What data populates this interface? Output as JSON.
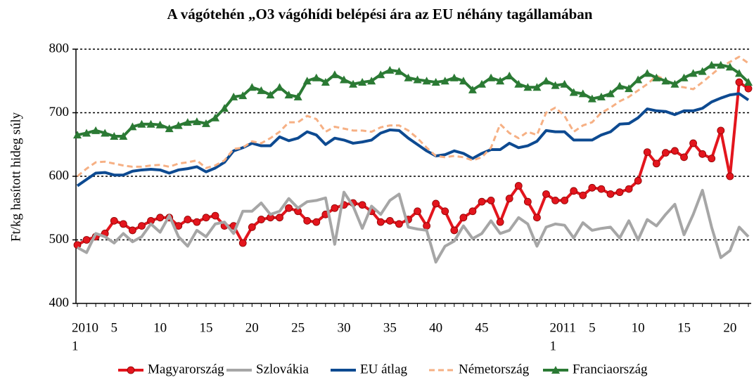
{
  "chart_data": {
    "type": "line",
    "title": "A vágótehén „O3 vágóhídi belépési ára az EU néhány tagállamában",
    "y_label": "Ft/kg hasított hideg súly",
    "ylim": [
      400,
      800
    ],
    "yticks": [
      400,
      500,
      600,
      700,
      800
    ],
    "grid": true,
    "legend": "bottom",
    "x_groups": [
      {
        "label": "2010",
        "start": 0
      },
      {
        "label": "2011",
        "start": 52
      }
    ],
    "categories": [
      "1",
      null,
      null,
      null,
      "5",
      null,
      null,
      null,
      null,
      "10",
      null,
      null,
      null,
      null,
      "15",
      null,
      null,
      null,
      null,
      "20",
      null,
      null,
      null,
      null,
      "25",
      null,
      null,
      null,
      null,
      "30",
      null,
      null,
      null,
      null,
      "35",
      null,
      null,
      null,
      null,
      "40",
      null,
      null,
      null,
      null,
      "45",
      null,
      null,
      null,
      null,
      null,
      null,
      null,
      "1",
      null,
      null,
      null,
      "5",
      null,
      null,
      null,
      null,
      "10",
      null,
      null,
      null,
      null,
      "15",
      null,
      null,
      null,
      null,
      "20",
      null,
      null
    ],
    "series": [
      {
        "name": "Magyarország",
        "color": "#e3151d",
        "marker": "circle",
        "dash": false,
        "values": [
          492,
          500,
          505,
          510,
          530,
          525,
          515,
          522,
          530,
          535,
          535,
          522,
          532,
          528,
          535,
          538,
          522,
          522,
          495,
          520,
          532,
          535,
          535,
          550,
          545,
          530,
          528,
          540,
          550,
          555,
          558,
          555,
          545,
          528,
          530,
          525,
          532,
          545,
          522,
          557,
          545,
          515,
          535,
          545,
          560,
          562,
          528,
          565,
          585,
          560,
          535,
          572,
          562,
          562,
          577,
          570,
          582,
          580,
          572,
          575,
          580,
          593,
          638,
          620,
          637,
          640,
          630,
          652,
          635,
          628,
          672,
          600,
          748,
          738
        ]
      },
      {
        "name": "Szlovákia",
        "color": "#a6a6a6",
        "marker": null,
        "dash": false,
        "values": [
          488,
          480,
          510,
          505,
          495,
          510,
          497,
          505,
          525,
          512,
          538,
          505,
          490,
          515,
          505,
          525,
          528,
          510,
          545,
          545,
          558,
          540,
          545,
          565,
          550,
          560,
          562,
          566,
          493,
          575,
          553,
          518,
          553,
          540,
          562,
          572,
          520,
          517,
          515,
          465,
          490,
          498,
          522,
          502,
          510,
          530,
          510,
          515,
          535,
          525,
          490,
          520,
          525,
          523,
          503,
          527,
          515,
          518,
          520,
          503,
          530,
          500,
          532,
          522,
          540,
          556,
          508,
          540,
          578,
          520,
          472,
          483,
          520,
          505
        ]
      },
      {
        "name": "EU átlag",
        "color": "#0d4a91",
        "marker": null,
        "dash": false,
        "values": [
          585,
          595,
          605,
          606,
          602,
          602,
          608,
          610,
          611,
          610,
          605,
          610,
          612,
          615,
          607,
          613,
          622,
          640,
          645,
          652,
          648,
          648,
          662,
          656,
          660,
          670,
          665,
          650,
          660,
          657,
          652,
          654,
          657,
          668,
          673,
          672,
          660,
          650,
          640,
          632,
          634,
          640,
          636,
          628,
          636,
          642,
          642,
          652,
          645,
          648,
          655,
          672,
          670,
          670,
          657,
          657,
          657,
          665,
          670,
          682,
          683,
          692,
          706,
          703,
          702,
          697,
          703,
          703,
          707,
          717,
          723,
          728,
          730,
          720
        ]
      },
      {
        "name": "Németország",
        "color": "#f6b084",
        "marker": null,
        "dash": true,
        "values": [
          600,
          612,
          622,
          623,
          620,
          617,
          615,
          615,
          617,
          618,
          615,
          620,
          622,
          625,
          613,
          617,
          625,
          643,
          645,
          655,
          652,
          660,
          670,
          685,
          685,
          695,
          690,
          670,
          678,
          675,
          672,
          672,
          670,
          677,
          680,
          680,
          672,
          660,
          645,
          632,
          630,
          632,
          630,
          625,
          630,
          645,
          682,
          668,
          660,
          670,
          665,
          700,
          708,
          695,
          670,
          680,
          685,
          700,
          708,
          718,
          725,
          735,
          745,
          758,
          752,
          742,
          740,
          737,
          748,
          760,
          772,
          780,
          788,
          778
        ]
      },
      {
        "name": "Franciaország",
        "color": "#2b7a34",
        "marker": "triangle",
        "dash": false,
        "values": [
          665,
          668,
          672,
          668,
          663,
          663,
          678,
          682,
          682,
          681,
          675,
          680,
          685,
          686,
          683,
          692,
          707,
          725,
          727,
          740,
          735,
          728,
          740,
          728,
          725,
          750,
          755,
          748,
          760,
          752,
          745,
          748,
          750,
          760,
          767,
          765,
          755,
          752,
          750,
          748,
          750,
          755,
          750,
          736,
          745,
          755,
          750,
          758,
          745,
          740,
          740,
          750,
          743,
          745,
          732,
          730,
          722,
          725,
          730,
          742,
          738,
          752,
          762,
          755,
          750,
          745,
          755,
          762,
          765,
          775,
          775,
          772,
          762,
          748
        ]
      }
    ]
  }
}
